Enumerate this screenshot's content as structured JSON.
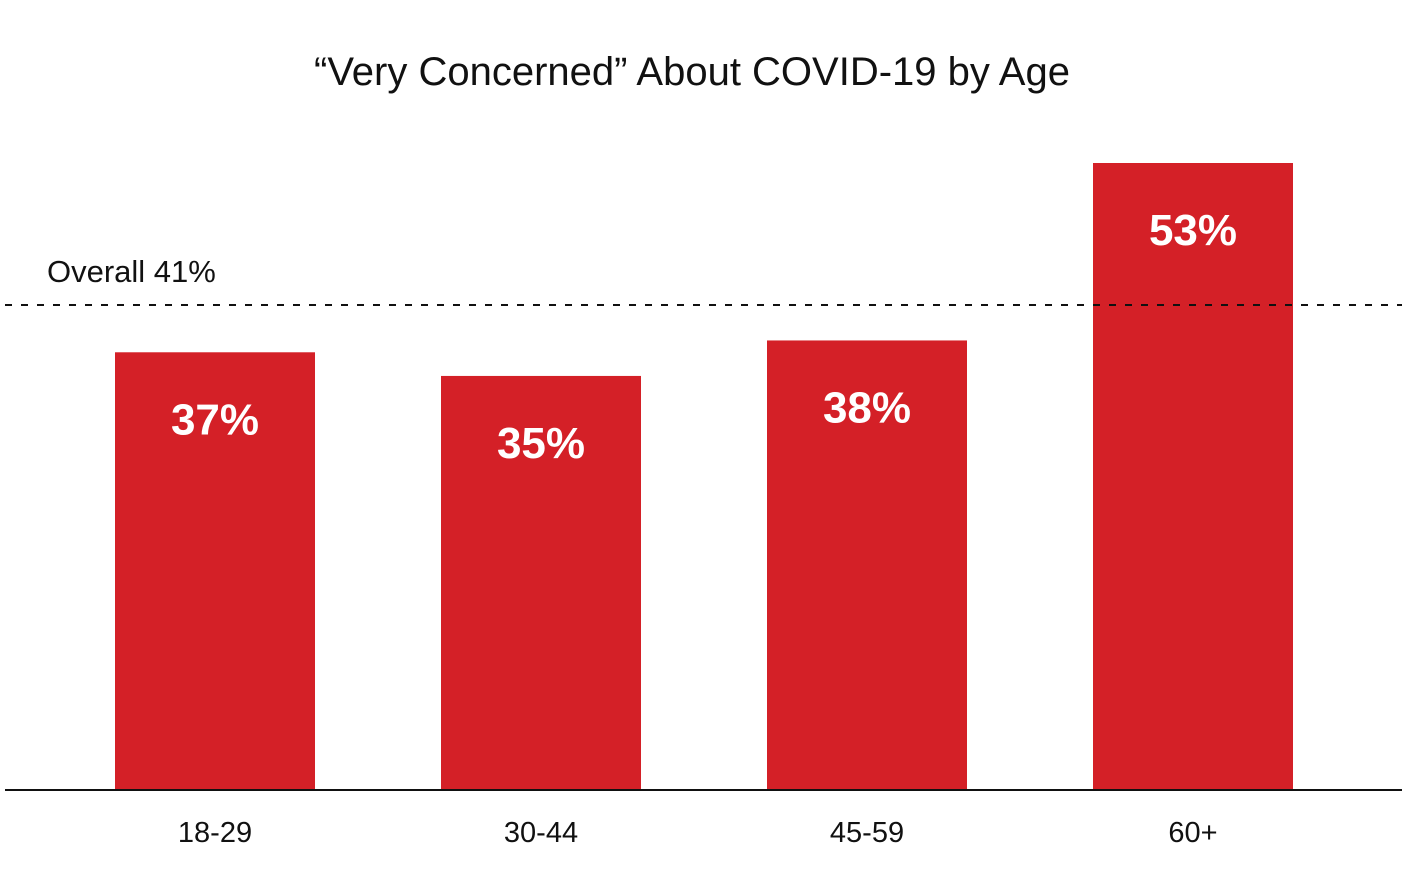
{
  "chart_data": {
    "type": "bar",
    "title": "“Very Concerned” About COVID-19 by Age",
    "xlabel": "",
    "ylabel": "",
    "categories": [
      "18-29",
      "30-44",
      "45-59",
      "60+"
    ],
    "values": [
      37,
      35,
      38,
      53
    ],
    "value_labels": [
      "37%",
      "35%",
      "38%",
      "53%"
    ],
    "ylim": [
      0,
      53
    ],
    "grid": false,
    "reference_line": {
      "value": 41,
      "label": "Overall 41%",
      "style": "dashed"
    },
    "bar_color": "#d42027",
    "bar_label_color": "#ffffff"
  }
}
